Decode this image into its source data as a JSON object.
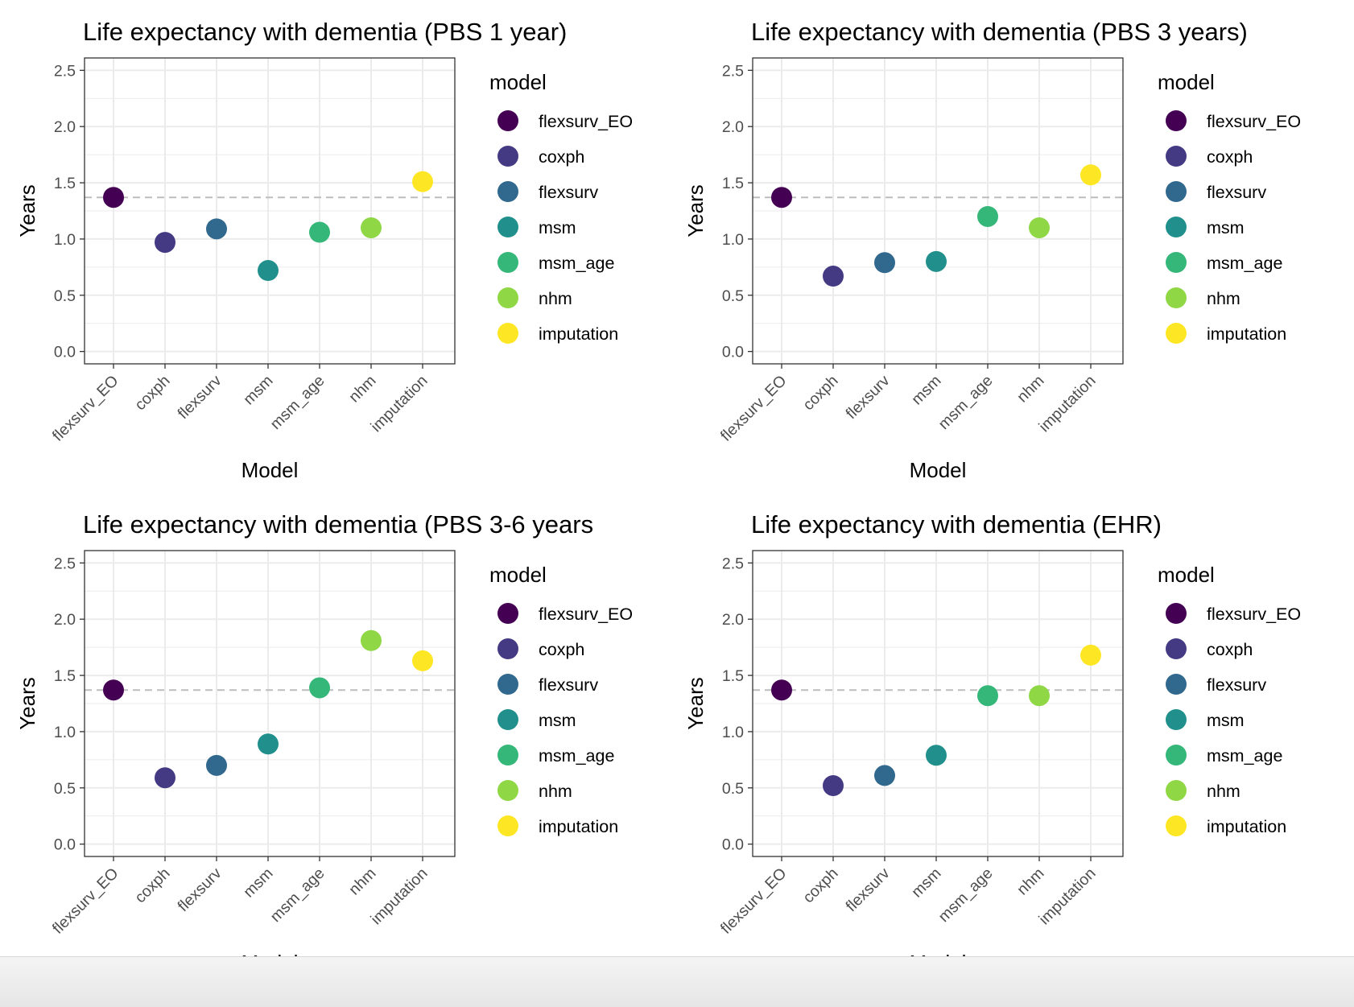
{
  "colors": {
    "flexsurv_EO": "#440154",
    "coxph": "#443A83",
    "flexsurv": "#31688E",
    "msm": "#21908C",
    "msm_age": "#35B779",
    "nhm": "#8FD744",
    "imputation": "#FDE725",
    "reference_line": "#bdbdbd",
    "grid": "#ebebeb",
    "panel_border": "#333333"
  },
  "legend": {
    "title": "model",
    "items": [
      "flexsurv_EO",
      "coxph",
      "flexsurv",
      "msm",
      "msm_age",
      "nhm",
      "imputation"
    ]
  },
  "chart_data": [
    {
      "type": "scatter",
      "title": "Life expectancy with dementia (PBS 1 year)",
      "xlabel": "Model",
      "ylabel": "Years",
      "categories": [
        "flexsurv_EO",
        "coxph",
        "flexsurv",
        "msm",
        "msm_age",
        "nhm",
        "imputation"
      ],
      "values": [
        1.37,
        0.97,
        1.09,
        0.72,
        1.06,
        1.1,
        1.51
      ],
      "reference_line": 1.37,
      "yticks": [
        "0.0",
        "0.5",
        "1.0",
        "1.5",
        "2.0",
        "2.5"
      ],
      "ylim": [
        -0.11,
        2.61
      ],
      "grid": true,
      "legend_position": "right"
    },
    {
      "type": "scatter",
      "title": "Life expectancy with dementia (PBS 3 years)",
      "xlabel": "Model",
      "ylabel": "Years",
      "categories": [
        "flexsurv_EO",
        "coxph",
        "flexsurv",
        "msm",
        "msm_age",
        "nhm",
        "imputation"
      ],
      "values": [
        1.37,
        0.67,
        0.79,
        0.8,
        1.2,
        1.1,
        1.57
      ],
      "reference_line": 1.37,
      "yticks": [
        "0.0",
        "0.5",
        "1.0",
        "1.5",
        "2.0",
        "2.5"
      ],
      "ylim": [
        -0.11,
        2.61
      ],
      "grid": true,
      "legend_position": "right"
    },
    {
      "type": "scatter",
      "title": "Life expectancy with dementia (PBS 3-6 years",
      "xlabel": "Model",
      "ylabel": "Years",
      "categories": [
        "flexsurv_EO",
        "coxph",
        "flexsurv",
        "msm",
        "msm_age",
        "nhm",
        "imputation"
      ],
      "values": [
        1.37,
        0.59,
        0.7,
        0.89,
        1.39,
        1.81,
        1.63
      ],
      "reference_line": 1.37,
      "yticks": [
        "0.0",
        "0.5",
        "1.0",
        "1.5",
        "2.0",
        "2.5"
      ],
      "ylim": [
        -0.11,
        2.61
      ],
      "grid": true,
      "legend_position": "right"
    },
    {
      "type": "scatter",
      "title": "Life expectancy with dementia (EHR)",
      "xlabel": "Model",
      "ylabel": "Years",
      "categories": [
        "flexsurv_EO",
        "coxph",
        "flexsurv",
        "msm",
        "msm_age",
        "nhm",
        "imputation"
      ],
      "values": [
        1.37,
        0.52,
        0.61,
        0.79,
        1.32,
        1.32,
        1.68
      ],
      "reference_line": 1.37,
      "yticks": [
        "0.0",
        "0.5",
        "1.0",
        "1.5",
        "2.0",
        "2.5"
      ],
      "ylim": [
        -0.11,
        2.61
      ],
      "grid": true,
      "legend_position": "right"
    }
  ]
}
